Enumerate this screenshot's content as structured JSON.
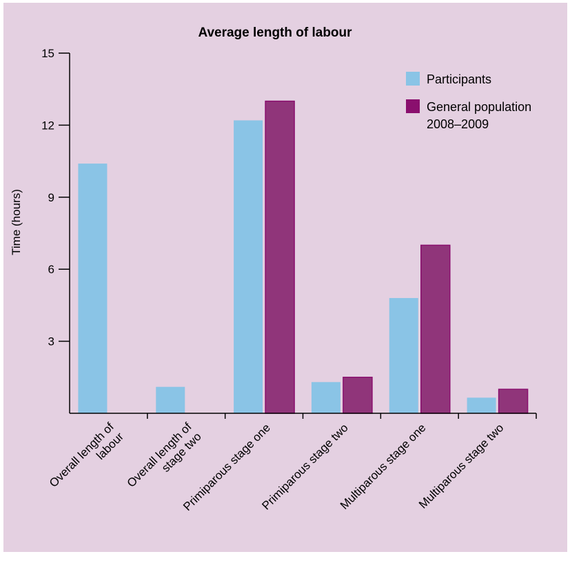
{
  "chart_data": {
    "type": "bar",
    "title": "Average length of labour",
    "ylabel": "Time (hours)",
    "xlabel": "",
    "ylim": [
      0,
      15
    ],
    "yticks": [
      3,
      6,
      9,
      12,
      15
    ],
    "grid": false,
    "legend_position": "top-right",
    "categories": [
      [
        "Overall length of",
        "labour"
      ],
      [
        "Overall length of",
        "stage two"
      ],
      [
        "Primiparous stage one"
      ],
      [
        "Primiparous stage two"
      ],
      [
        "Multiparous stage one"
      ],
      [
        "Multiparous stage two"
      ]
    ],
    "series": [
      {
        "name": "Participants",
        "color": "#8ac4e6",
        "stroke": "#8ac4e6",
        "values": [
          10.4,
          1.1,
          12.2,
          1.3,
          4.8,
          0.65
        ]
      },
      {
        "name": [
          "General population",
          "2008–2009"
        ],
        "color": "#90357a",
        "stroke": "#8a0f6e",
        "values": [
          null,
          null,
          13.0,
          1.5,
          7.0,
          1.0
        ]
      }
    ]
  }
}
